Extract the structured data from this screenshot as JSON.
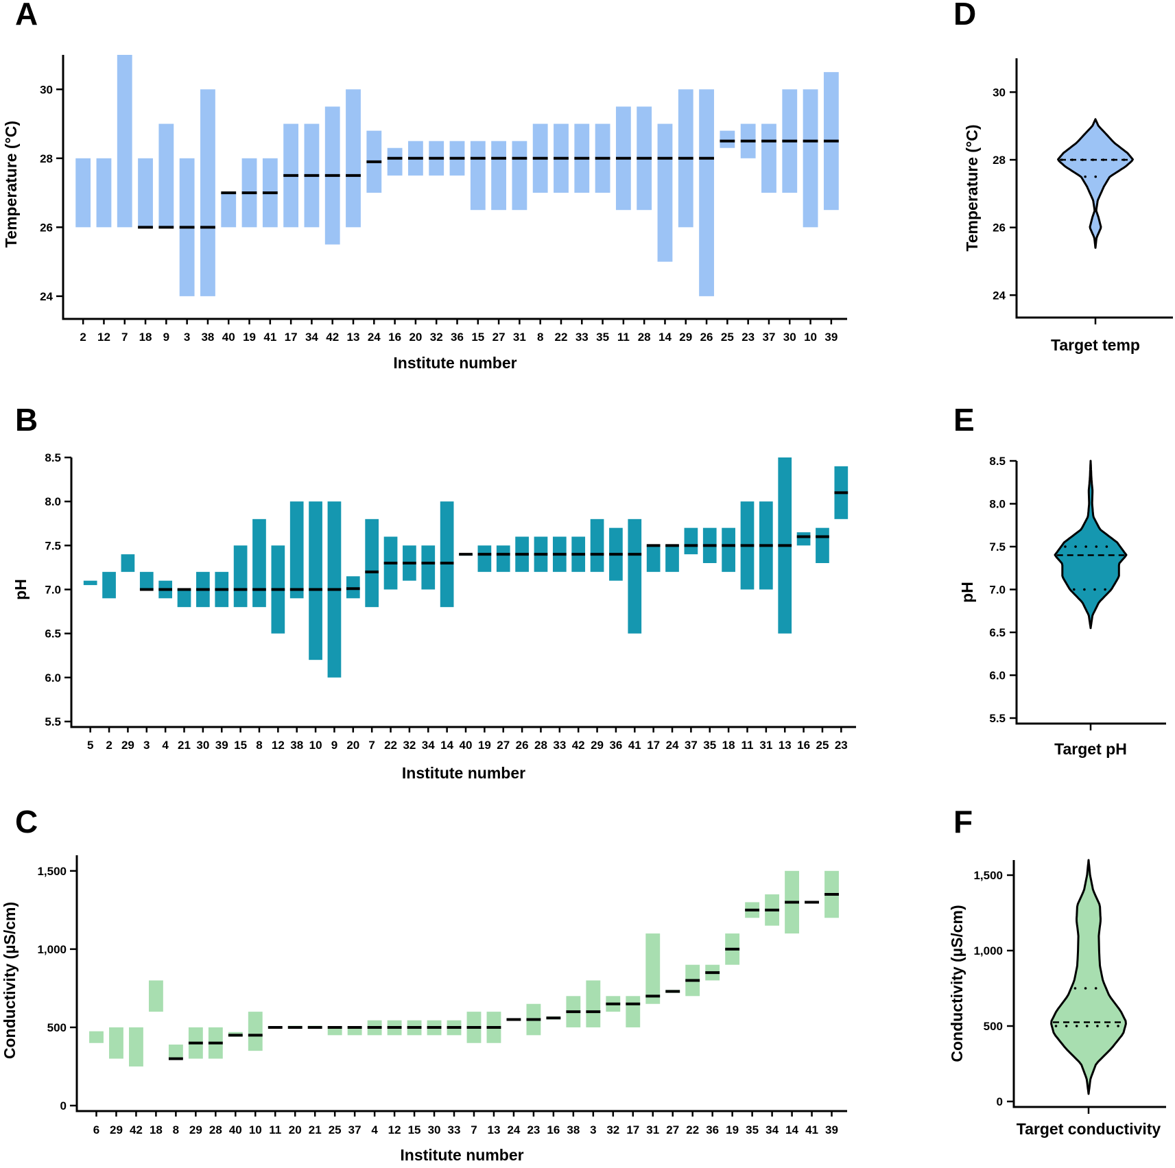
{
  "colors": {
    "temperature": "#9cc3f5",
    "ph": "#1597b0",
    "conductivity": "#a8deb0",
    "line": "#000000"
  },
  "chart_data": [
    {
      "id": "A",
      "letter": "A",
      "type": "bar",
      "title": "",
      "xlabel": "Institute number",
      "ylabel": "Temperature (°C)",
      "ylim": [
        23.5,
        31
      ],
      "yticks": [
        24,
        26,
        28,
        30
      ],
      "ytick_labels": [
        "24",
        "26",
        "28",
        "30"
      ],
      "grid": false,
      "categories": [
        "2",
        "12",
        "7",
        "18",
        "9",
        "3",
        "38",
        "40",
        "19",
        "41",
        "17",
        "34",
        "42",
        "13",
        "24",
        "16",
        "20",
        "32",
        "36",
        "15",
        "27",
        "31",
        "8",
        "22",
        "33",
        "35",
        "11",
        "28",
        "14",
        "29",
        "26",
        "25",
        "23",
        "37",
        "30",
        "10",
        "39"
      ],
      "low": [
        26,
        26,
        26,
        26,
        26,
        24,
        24,
        26,
        26,
        26,
        26,
        26,
        25.5,
        26,
        27,
        27.5,
        27.5,
        27.5,
        27.5,
        26.5,
        26.5,
        26.5,
        27,
        27,
        27,
        27,
        26.5,
        26.5,
        25,
        26,
        24,
        28.3,
        28,
        27,
        27,
        26,
        26.5
      ],
      "high": [
        28,
        28,
        31,
        28,
        29,
        28,
        30,
        27,
        28,
        28,
        29,
        29,
        29.5,
        30,
        28.8,
        28.3,
        28.5,
        28.5,
        28.5,
        28.5,
        28.5,
        28.5,
        29,
        29,
        29,
        29,
        29.5,
        29.5,
        29,
        30,
        30,
        28.8,
        29,
        29,
        30,
        30,
        30.5
      ],
      "target": [
        null,
        null,
        null,
        26,
        26,
        26,
        26,
        27,
        27,
        27,
        27.5,
        27.5,
        27.5,
        27.5,
        27.9,
        28,
        28,
        28,
        28,
        28,
        28,
        28,
        28,
        28,
        28,
        28,
        28,
        28,
        28,
        28,
        28,
        28.5,
        28.5,
        28.5,
        28.5,
        28.5,
        28.5
      ]
    },
    {
      "id": "B",
      "letter": "B",
      "type": "bar",
      "title": "",
      "xlabel": "Institute number",
      "ylabel": "pH",
      "ylim": [
        5.5,
        8.5
      ],
      "yticks": [
        5.5,
        6.0,
        6.5,
        7.0,
        7.5,
        8.0,
        8.5
      ],
      "ytick_labels": [
        "5.5",
        "6.0",
        "6.5",
        "7.0",
        "7.5",
        "8.0",
        "8.5"
      ],
      "grid": false,
      "categories": [
        "5",
        "2",
        "29",
        "3",
        "4",
        "21",
        "30",
        "39",
        "15",
        "8",
        "12",
        "38",
        "10",
        "9",
        "20",
        "7",
        "22",
        "32",
        "34",
        "14",
        "40",
        "19",
        "27",
        "26",
        "28",
        "33",
        "42",
        "29",
        "36",
        "41",
        "17",
        "24",
        "37",
        "35",
        "18",
        "11",
        "31",
        "13",
        "16",
        "25",
        "23"
      ],
      "low": [
        7.05,
        6.9,
        7.2,
        7.0,
        6.9,
        6.8,
        6.8,
        6.8,
        6.8,
        6.8,
        6.5,
        6.9,
        6.2,
        6.0,
        6.9,
        6.8,
        7.0,
        7.1,
        7.0,
        6.8,
        7.4,
        7.2,
        7.2,
        7.2,
        7.2,
        7.2,
        7.2,
        7.2,
        7.1,
        6.5,
        7.2,
        7.2,
        7.4,
        7.3,
        7.2,
        7.0,
        7.0,
        6.5,
        7.5,
        7.3,
        7.8
      ],
      "high": [
        7.1,
        7.2,
        7.4,
        7.2,
        7.1,
        7.0,
        7.2,
        7.2,
        7.5,
        7.8,
        7.5,
        8.0,
        8.0,
        8.0,
        7.15,
        7.8,
        7.6,
        7.5,
        7.5,
        8.0,
        7.4,
        7.5,
        7.5,
        7.6,
        7.6,
        7.6,
        7.6,
        7.8,
        7.7,
        7.8,
        7.5,
        7.5,
        7.7,
        7.7,
        7.7,
        8.0,
        8.0,
        8.5,
        7.65,
        7.7,
        8.4
      ],
      "target": [
        null,
        null,
        null,
        7.0,
        7.0,
        7.0,
        7.0,
        7.0,
        7.0,
        7.0,
        7.0,
        7.0,
        7.0,
        7.0,
        7.01,
        7.2,
        7.3,
        7.3,
        7.3,
        7.3,
        7.4,
        7.4,
        7.4,
        7.4,
        7.4,
        7.4,
        7.4,
        7.4,
        7.4,
        7.4,
        7.5,
        7.5,
        7.5,
        7.5,
        7.5,
        7.5,
        7.5,
        7.5,
        7.6,
        7.6,
        8.1
      ]
    },
    {
      "id": "C",
      "letter": "C",
      "type": "bar",
      "title": "",
      "xlabel": "Institute number",
      "ylabel": "Conductivity (µS/cm)",
      "ylim": [
        0,
        1600
      ],
      "yticks": [
        0,
        500,
        1000,
        1500
      ],
      "ytick_labels": [
        "0",
        "500",
        "1,000",
        "1,500"
      ],
      "grid": false,
      "categories": [
        "6",
        "29",
        "42",
        "18",
        "8",
        "29",
        "28",
        "40",
        "10",
        "11",
        "20",
        "21",
        "25",
        "37",
        "4",
        "12",
        "15",
        "30",
        "33",
        "7",
        "13",
        "24",
        "23",
        "16",
        "38",
        "3",
        "32",
        "17",
        "31",
        "27",
        "22",
        "36",
        "19",
        "35",
        "34",
        "14",
        "41",
        "39"
      ],
      "low": [
        400,
        300,
        250,
        600,
        300,
        300,
        300,
        440,
        350,
        500,
        490,
        490,
        450,
        450,
        450,
        450,
        450,
        450,
        450,
        400,
        400,
        550,
        450,
        550,
        500,
        500,
        600,
        500,
        650,
        720,
        700,
        800,
        900,
        1200,
        1150,
        1100,
        1300,
        1200
      ],
      "high": [
        475,
        500,
        500,
        800,
        390,
        500,
        500,
        470,
        600,
        505,
        510,
        510,
        505,
        505,
        545,
        545,
        545,
        545,
        545,
        600,
        600,
        555,
        650,
        570,
        700,
        800,
        700,
        700,
        1100,
        740,
        900,
        900,
        1100,
        1300,
        1350,
        1500,
        1305,
        1500
      ],
      "target": [
        null,
        null,
        null,
        null,
        300,
        400,
        400,
        450,
        450,
        500,
        500,
        500,
        500,
        500,
        500,
        500,
        500,
        500,
        500,
        500,
        500,
        550,
        550,
        560,
        600,
        600,
        650,
        650,
        700,
        730,
        800,
        850,
        1000,
        1250,
        1250,
        1300,
        1300,
        1350
      ]
    }
  ],
  "violins": [
    {
      "id": "D",
      "letter": "D",
      "type": "violin",
      "xlabel": "Target temp",
      "ylabel": "Temperature (°C)",
      "ylim": [
        23.5,
        31
      ],
      "yticks": [
        24,
        26,
        28,
        30
      ],
      "ytick_labels": [
        "24",
        "26",
        "28",
        "30"
      ],
      "median": 28,
      "quartiles": [
        27.5,
        28
      ],
      "profile": [
        [
          25.4,
          0.0
        ],
        [
          25.7,
          0.03
        ],
        [
          26.0,
          0.15
        ],
        [
          26.3,
          0.08
        ],
        [
          26.5,
          0.02
        ],
        [
          26.8,
          0.06
        ],
        [
          27.2,
          0.22
        ],
        [
          27.5,
          0.38
        ],
        [
          27.8,
          0.8
        ],
        [
          28.0,
          1.0
        ],
        [
          28.2,
          0.85
        ],
        [
          28.5,
          0.5
        ],
        [
          28.8,
          0.25
        ],
        [
          29.0,
          0.08
        ],
        [
          29.2,
          0.0
        ]
      ]
    },
    {
      "id": "E",
      "letter": "E",
      "type": "violin",
      "xlabel": "Target pH",
      "ylabel": "pH",
      "ylim": [
        5.5,
        8.5
      ],
      "yticks": [
        5.5,
        6.0,
        6.5,
        7.0,
        7.5,
        8.0,
        8.5
      ],
      "ytick_labels": [
        "5.5",
        "6.0",
        "6.5",
        "7.0",
        "7.5",
        "8.0",
        "8.5"
      ],
      "median": 7.4,
      "quartiles": [
        7.0,
        7.5
      ],
      "profile": [
        [
          6.55,
          0.0
        ],
        [
          6.7,
          0.05
        ],
        [
          6.85,
          0.22
        ],
        [
          7.0,
          0.55
        ],
        [
          7.15,
          0.75
        ],
        [
          7.3,
          0.75
        ],
        [
          7.4,
          0.95
        ],
        [
          7.55,
          0.7
        ],
        [
          7.7,
          0.25
        ],
        [
          7.85,
          0.07
        ],
        [
          8.0,
          0.04
        ],
        [
          8.15,
          0.05
        ],
        [
          8.3,
          0.02
        ],
        [
          8.5,
          0.0
        ]
      ]
    },
    {
      "id": "F",
      "letter": "F",
      "type": "violin",
      "xlabel": "Target conductivity",
      "ylabel": "Conductivity (µS/cm)",
      "ylim": [
        0,
        1600
      ],
      "yticks": [
        0,
        500,
        1000,
        1500
      ],
      "ytick_labels": [
        "0",
        "500",
        "1,000",
        "1,500"
      ],
      "median": 525,
      "quartiles": [
        500,
        750
      ],
      "profile": [
        [
          50,
          0.0
        ],
        [
          150,
          0.05
        ],
        [
          250,
          0.2
        ],
        [
          350,
          0.6
        ],
        [
          450,
          0.92
        ],
        [
          525,
          1.0
        ],
        [
          600,
          0.85
        ],
        [
          700,
          0.55
        ],
        [
          800,
          0.38
        ],
        [
          900,
          0.3
        ],
        [
          1000,
          0.28
        ],
        [
          1100,
          0.27
        ],
        [
          1200,
          0.32
        ],
        [
          1300,
          0.3
        ],
        [
          1400,
          0.12
        ],
        [
          1500,
          0.04
        ],
        [
          1600,
          0.0
        ]
      ]
    }
  ]
}
